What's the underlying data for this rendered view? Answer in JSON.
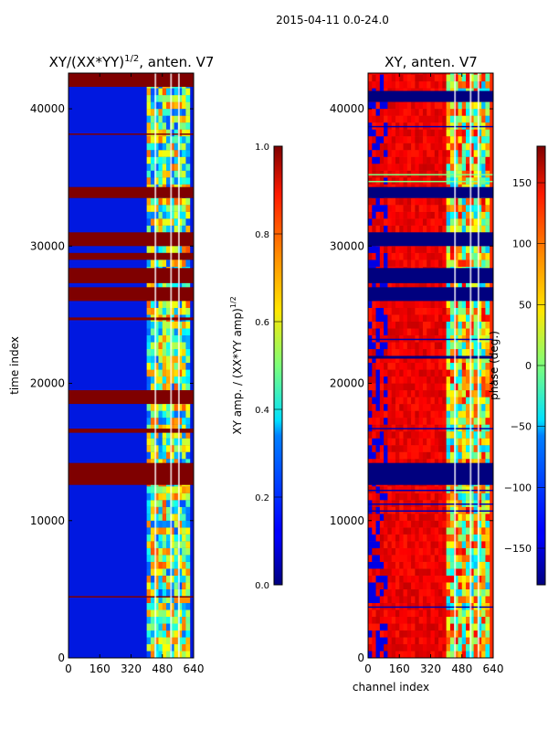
{
  "suptitle": "2015-04-11 0.0-24.0",
  "chart_data": [
    {
      "type": "heatmap",
      "title_main": "XY/(XX*YY)",
      "title_sup": "1/2",
      "title_rest": ", anten. V7",
      "xlabel": "",
      "ylabel": "time index",
      "xlim": [
        0,
        640
      ],
      "ylim": [
        0,
        42600
      ],
      "xticks": [
        0,
        160,
        320,
        480,
        640
      ],
      "yticks": [
        0,
        10000,
        20000,
        30000,
        40000
      ],
      "active_channels": [
        400,
        620
      ],
      "flagged_time_ranges": [
        [
          41600,
          42600
        ],
        [
          33500,
          34300
        ],
        [
          30000,
          31000
        ],
        [
          29000,
          29500
        ],
        [
          27300,
          28400
        ],
        [
          26000,
          27000
        ],
        [
          12600,
          14200
        ],
        [
          16400,
          16700
        ],
        [
          18500,
          19500
        ],
        [
          24600,
          24800
        ],
        [
          4400,
          4500
        ],
        [
          38100,
          38200
        ]
      ],
      "colorbar": {
        "label_main": "XY amp. / (XX*YY amp)",
        "label_sup": "1/2",
        "clim": [
          0,
          1
        ],
        "ticks": [
          "0.0",
          "0.2",
          "0.4",
          "0.6",
          "0.8",
          "1.0"
        ]
      }
    },
    {
      "type": "heatmap",
      "title": "XY, anten. V7",
      "xlabel": "channel index",
      "ylabel": "",
      "xlim": [
        0,
        640
      ],
      "ylim": [
        0,
        42600
      ],
      "xticks": [
        0,
        160,
        320,
        480,
        640
      ],
      "yticks": [
        0,
        10000,
        20000,
        30000,
        40000
      ],
      "active_channels": [
        400,
        620
      ],
      "flagged_time_ranges": [
        [
          33500,
          34300
        ],
        [
          30000,
          31000
        ],
        [
          27300,
          28400
        ],
        [
          26000,
          27000
        ],
        [
          12600,
          14200
        ],
        [
          40500,
          41300
        ],
        [
          21800,
          22000
        ]
      ],
      "colorbar": {
        "label": "phase (deg.)",
        "clim": [
          -180,
          180
        ],
        "ticks": [
          "-150",
          "-100",
          "-50",
          "0",
          "50",
          "100",
          "150"
        ]
      }
    }
  ]
}
